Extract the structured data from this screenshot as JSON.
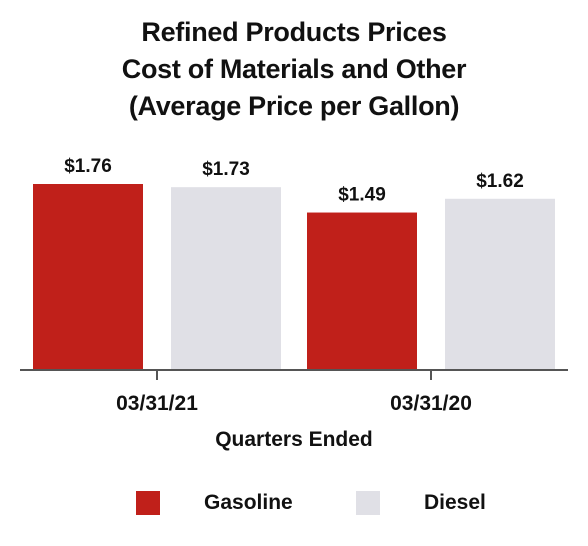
{
  "chart_data": {
    "type": "bar",
    "title": [
      "Refined Products Prices",
      "Cost of Materials and Other",
      "(Average Price per Gallon)"
    ],
    "xlabel": "Quarters Ended",
    "ylabel": "",
    "categories": [
      "03/31/21",
      "03/31/20"
    ],
    "series": [
      {
        "name": "Gasoline",
        "color": "#c0201a",
        "values": [
          1.76,
          1.49
        ],
        "labels": [
          "$1.76",
          "$1.49"
        ]
      },
      {
        "name": "Diesel",
        "color": "#e0e0e6",
        "values": [
          1.73,
          1.62
        ],
        "labels": [
          "$1.73",
          "$1.62"
        ]
      }
    ],
    "ylim": [
      0,
      1.76
    ],
    "grid": false,
    "legend_position": "bottom"
  }
}
